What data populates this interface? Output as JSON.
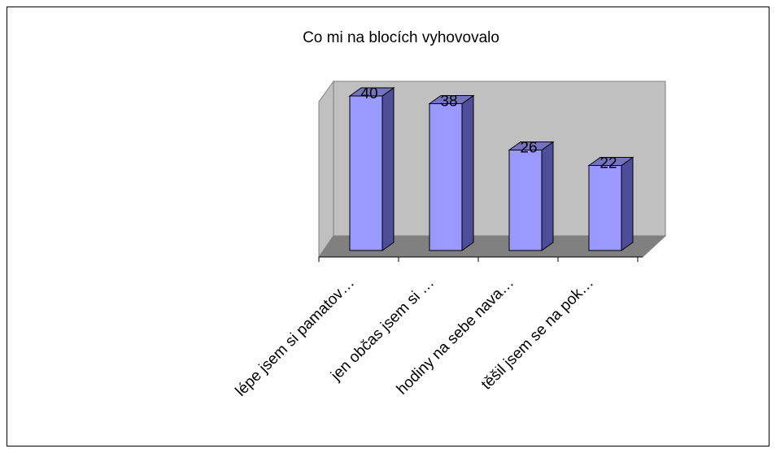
{
  "chart_data": {
    "type": "bar3d",
    "title": "Co mi na blocích vyhovovalo",
    "categories": [
      "lépe jsem si pamatov…",
      "jen občas jsem si …",
      "hodiny na sebe nava…",
      "těšil jsem se na pok…"
    ],
    "values": [
      40,
      38,
      26,
      22
    ],
    "color": "#9999ff",
    "ylim": [
      0,
      44
    ]
  }
}
